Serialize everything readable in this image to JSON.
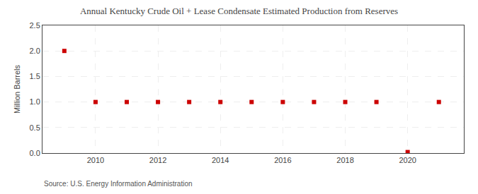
{
  "chart_data": {
    "type": "scatter",
    "title": "Annual Kentucky Crude Oil + Lease Condensate Estimated Production from Reserves",
    "ylabel": "Million Barrels",
    "annotations": [
      "Source: U.S. Energy Information Administration"
    ],
    "x": [
      2009,
      2010,
      2011,
      2012,
      2013,
      2014,
      2015,
      2016,
      2017,
      2018,
      2019,
      2020,
      2021
    ],
    "values": [
      2.0,
      1.0,
      1.0,
      1.0,
      1.0,
      1.0,
      1.0,
      1.0,
      1.0,
      1.0,
      1.0,
      0.02,
      1.0
    ],
    "color": "#cc0000",
    "marker": "square",
    "xlim": [
      2008.3,
      2021.8
    ],
    "xticks": [
      2010,
      2012,
      2014,
      2016,
      2018,
      2020
    ],
    "ylim": [
      0.0,
      2.5
    ],
    "yticks": [
      {
        "value": 0.0,
        "label": "0.0"
      },
      0.5,
      {
        "value": 1.0,
        "label": "1.0"
      },
      1.5,
      {
        "value": 2.0,
        "label": "2.0"
      },
      2.5
    ],
    "grid": true
  }
}
